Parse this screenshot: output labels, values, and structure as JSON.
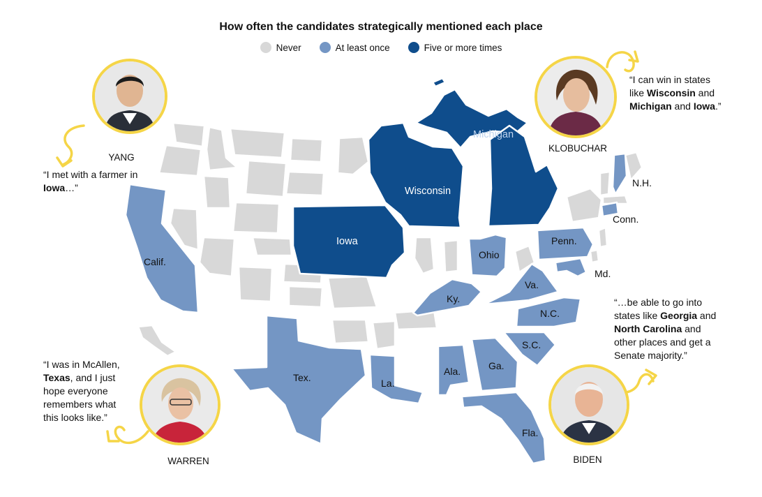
{
  "title": "How often the candidates strategically mentioned each place",
  "legend": [
    {
      "label": "Never",
      "color": "#d8d8d8"
    },
    {
      "label": "At least once",
      "color": "#7496c4"
    },
    {
      "label": "Five or more times",
      "color": "#0f4d8c"
    }
  ],
  "states": {
    "iowa": "Iowa",
    "wisconsin": "Wisconsin",
    "michigan": "Michigan",
    "calif": "Calif.",
    "tex": "Tex.",
    "ohio": "Ohio",
    "penn": "Penn.",
    "va": "Va.",
    "ky": "Ky.",
    "nc": "N.C.",
    "sc": "S.C.",
    "ga": "Ga.",
    "ala": "Ala.",
    "la": "La.",
    "fla": "Fla.",
    "nh": "N.H.",
    "conn": "Conn.",
    "md": "Md."
  },
  "candidates": {
    "yang": {
      "name": "YANG",
      "quote_open": "“I met with a farmer in ",
      "quote_bold": "Iowa",
      "quote_close": "…”"
    },
    "klobuchar": {
      "name": "KLOBUCHAR",
      "q1": "“I can win in states like ",
      "b1": "Wisconsin",
      "q2": " and ",
      "b2": "Michigan",
      "q3": " and ",
      "b3": "Iowa",
      "q4": ".”"
    },
    "warren": {
      "name": "WARREN",
      "q1": "“I was in McAllen, ",
      "b1": "Texas",
      "q2": ", and I just hope everyone remembers what this looks like.”"
    },
    "biden": {
      "name": "BIDEN",
      "q1": "“…be able to go into states like ",
      "b1": "Georgia",
      "q2": " and ",
      "b2": "North Carolina",
      "q3": " and other places and get a Senate majority.”"
    }
  },
  "colors": {
    "accent_ring": "#f5d547",
    "never": "#d8d8d8",
    "once": "#7496c4",
    "five": "#0f4d8c"
  }
}
